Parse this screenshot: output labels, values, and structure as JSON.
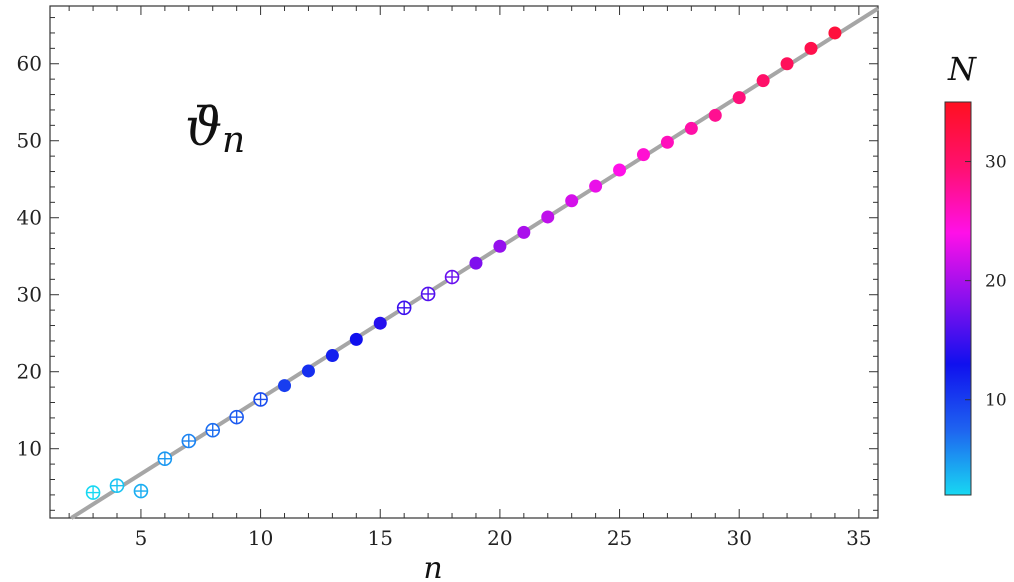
{
  "chart_data": {
    "type": "scatter",
    "title": "",
    "annotation": {
      "symbol": "ϑ",
      "subscript": "n"
    },
    "xlabel": "n",
    "ylabel": "",
    "xlim": [
      1.2,
      35.8
    ],
    "ylim": [
      1.0,
      67.5
    ],
    "xticks": [
      5,
      10,
      15,
      20,
      25,
      30,
      35
    ],
    "yticks": [
      10,
      20,
      30,
      40,
      50,
      60
    ],
    "grid": false,
    "legend": "none",
    "fit_line": {
      "slope": 1.963,
      "intercept": -3.1,
      "color": "#a6a6a6"
    },
    "colorbar": {
      "label": "N",
      "range": [
        2,
        35
      ],
      "ticks": [
        10,
        20,
        30
      ],
      "gradient": [
        "#18d8f2",
        "#1e63f0",
        "#1010ee",
        "#8a10ee",
        "#ff10e8",
        "#ff1070",
        "#ff1020"
      ]
    },
    "marker_styles": {
      "open_cross": "hollow circle with cross",
      "filled": "filled circle"
    },
    "points": [
      {
        "n": 3,
        "value": 4.3,
        "N": 2,
        "marker": "open_cross"
      },
      {
        "n": 4,
        "value": 5.2,
        "N": 3,
        "marker": "open_cross"
      },
      {
        "n": 5,
        "value": 4.5,
        "N": 4,
        "marker": "open_cross"
      },
      {
        "n": 6,
        "value": 8.7,
        "N": 5,
        "marker": "open_cross"
      },
      {
        "n": 7,
        "value": 11.0,
        "N": 6,
        "marker": "open_cross"
      },
      {
        "n": 8,
        "value": 12.4,
        "N": 7,
        "marker": "open_cross"
      },
      {
        "n": 9,
        "value": 14.1,
        "N": 8,
        "marker": "open_cross"
      },
      {
        "n": 10,
        "value": 16.4,
        "N": 9,
        "marker": "open_cross"
      },
      {
        "n": 11,
        "value": 18.2,
        "N": 10,
        "marker": "filled"
      },
      {
        "n": 12,
        "value": 20.1,
        "N": 11,
        "marker": "filled"
      },
      {
        "n": 13,
        "value": 22.1,
        "N": 12,
        "marker": "filled"
      },
      {
        "n": 14,
        "value": 24.2,
        "N": 13,
        "marker": "filled"
      },
      {
        "n": 15,
        "value": 26.3,
        "N": 14,
        "marker": "filled"
      },
      {
        "n": 16,
        "value": 28.3,
        "N": 15,
        "marker": "open_cross"
      },
      {
        "n": 17,
        "value": 30.1,
        "N": 16,
        "marker": "open_cross"
      },
      {
        "n": 18,
        "value": 32.3,
        "N": 17,
        "marker": "open_cross"
      },
      {
        "n": 19,
        "value": 34.1,
        "N": 18,
        "marker": "filled"
      },
      {
        "n": 20,
        "value": 36.3,
        "N": 19,
        "marker": "filled"
      },
      {
        "n": 21,
        "value": 38.1,
        "N": 20,
        "marker": "filled"
      },
      {
        "n": 22,
        "value": 40.1,
        "N": 21,
        "marker": "filled"
      },
      {
        "n": 23,
        "value": 42.2,
        "N": 22,
        "marker": "filled"
      },
      {
        "n": 24,
        "value": 44.1,
        "N": 23,
        "marker": "filled"
      },
      {
        "n": 25,
        "value": 46.2,
        "N": 24,
        "marker": "filled"
      },
      {
        "n": 26,
        "value": 48.2,
        "N": 25,
        "marker": "filled"
      },
      {
        "n": 27,
        "value": 49.8,
        "N": 26,
        "marker": "filled"
      },
      {
        "n": 28,
        "value": 51.6,
        "N": 27,
        "marker": "filled"
      },
      {
        "n": 29,
        "value": 53.3,
        "N": 28,
        "marker": "filled"
      },
      {
        "n": 30,
        "value": 55.6,
        "N": 29,
        "marker": "filled"
      },
      {
        "n": 31,
        "value": 57.8,
        "N": 30,
        "marker": "filled"
      },
      {
        "n": 32,
        "value": 60.0,
        "N": 31,
        "marker": "filled"
      },
      {
        "n": 33,
        "value": 62.0,
        "N": 32,
        "marker": "filled"
      },
      {
        "n": 34,
        "value": 64.0,
        "N": 33,
        "marker": "filled"
      }
    ]
  }
}
